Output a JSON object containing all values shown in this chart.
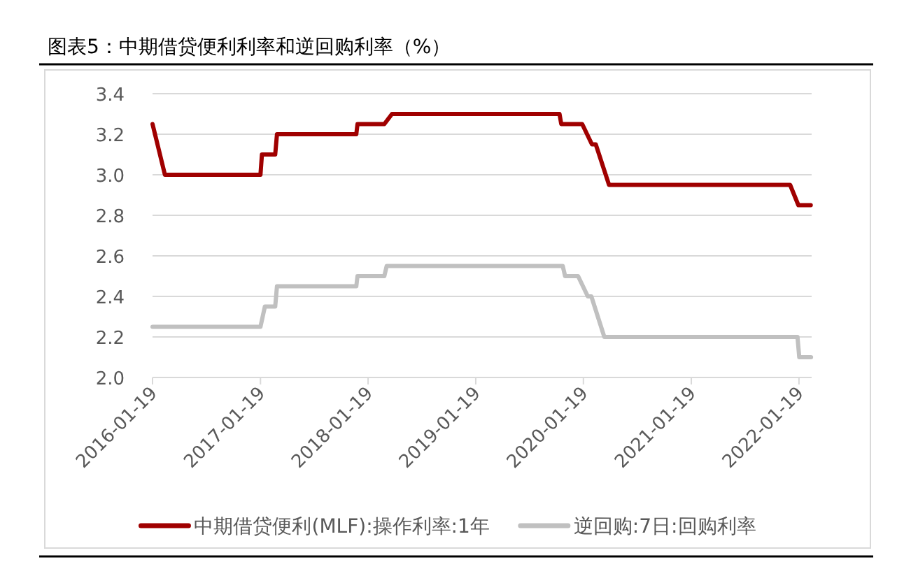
{
  "chart_data": {
    "type": "line",
    "title": "图表5：中期借贷便利利率和逆回购利率（%）",
    "xlim": [
      "2016-01-19",
      "2022-03-03"
    ],
    "xticks": [
      "2016-01-19",
      "2017-01-19",
      "2018-01-19",
      "2019-01-19",
      "2020-01-19",
      "2021-01-19",
      "2022-01-19"
    ],
    "ylim": [
      2.0,
      3.4
    ],
    "yticks": [
      {
        "value": 2.0,
        "label": "2.0"
      },
      2.2,
      2.4,
      2.6,
      2.8,
      {
        "value": 3.0,
        "label": "3.0"
      },
      3.2,
      3.4
    ],
    "grid": "y",
    "legend": "bottom",
    "series": [
      {
        "name": "中期借贷便利(MLF):操作利率:1年",
        "color": "#a00000",
        "x": [
          "2016-01-19",
          "2016-03-01",
          "2017-01-19",
          "2017-01-24",
          "2017-03-10",
          "2017-03-16",
          "2017-12-10",
          "2017-12-14",
          "2018-03-15",
          "2018-04-10",
          "2019-10-30",
          "2019-11-05",
          "2020-01-15",
          "2020-02-17",
          "2020-03-01",
          "2020-04-15",
          "2021-12-20",
          "2022-01-17",
          "2022-02-28"
        ],
        "values": [
          3.25,
          3.0,
          3.0,
          3.1,
          3.1,
          3.2,
          3.2,
          3.25,
          3.25,
          3.3,
          3.3,
          3.25,
          3.25,
          3.15,
          3.15,
          2.95,
          2.95,
          2.85,
          2.85
        ]
      },
      {
        "name": "逆回购:7日:回购利率",
        "color": "#c0c0c0",
        "x": [
          "2016-01-19",
          "2017-01-19",
          "2017-02-03",
          "2017-03-10",
          "2017-03-16",
          "2017-12-10",
          "2017-12-14",
          "2018-03-15",
          "2018-03-23",
          "2019-11-10",
          "2019-11-18",
          "2020-01-01",
          "2020-02-03",
          "2020-02-15",
          "2020-03-30",
          "2022-01-14",
          "2022-01-20",
          "2022-03-01"
        ],
        "values": [
          2.25,
          2.25,
          2.35,
          2.35,
          2.45,
          2.45,
          2.5,
          2.5,
          2.55,
          2.55,
          2.5,
          2.5,
          2.4,
          2.4,
          2.2,
          2.2,
          2.1,
          2.1
        ]
      }
    ]
  }
}
